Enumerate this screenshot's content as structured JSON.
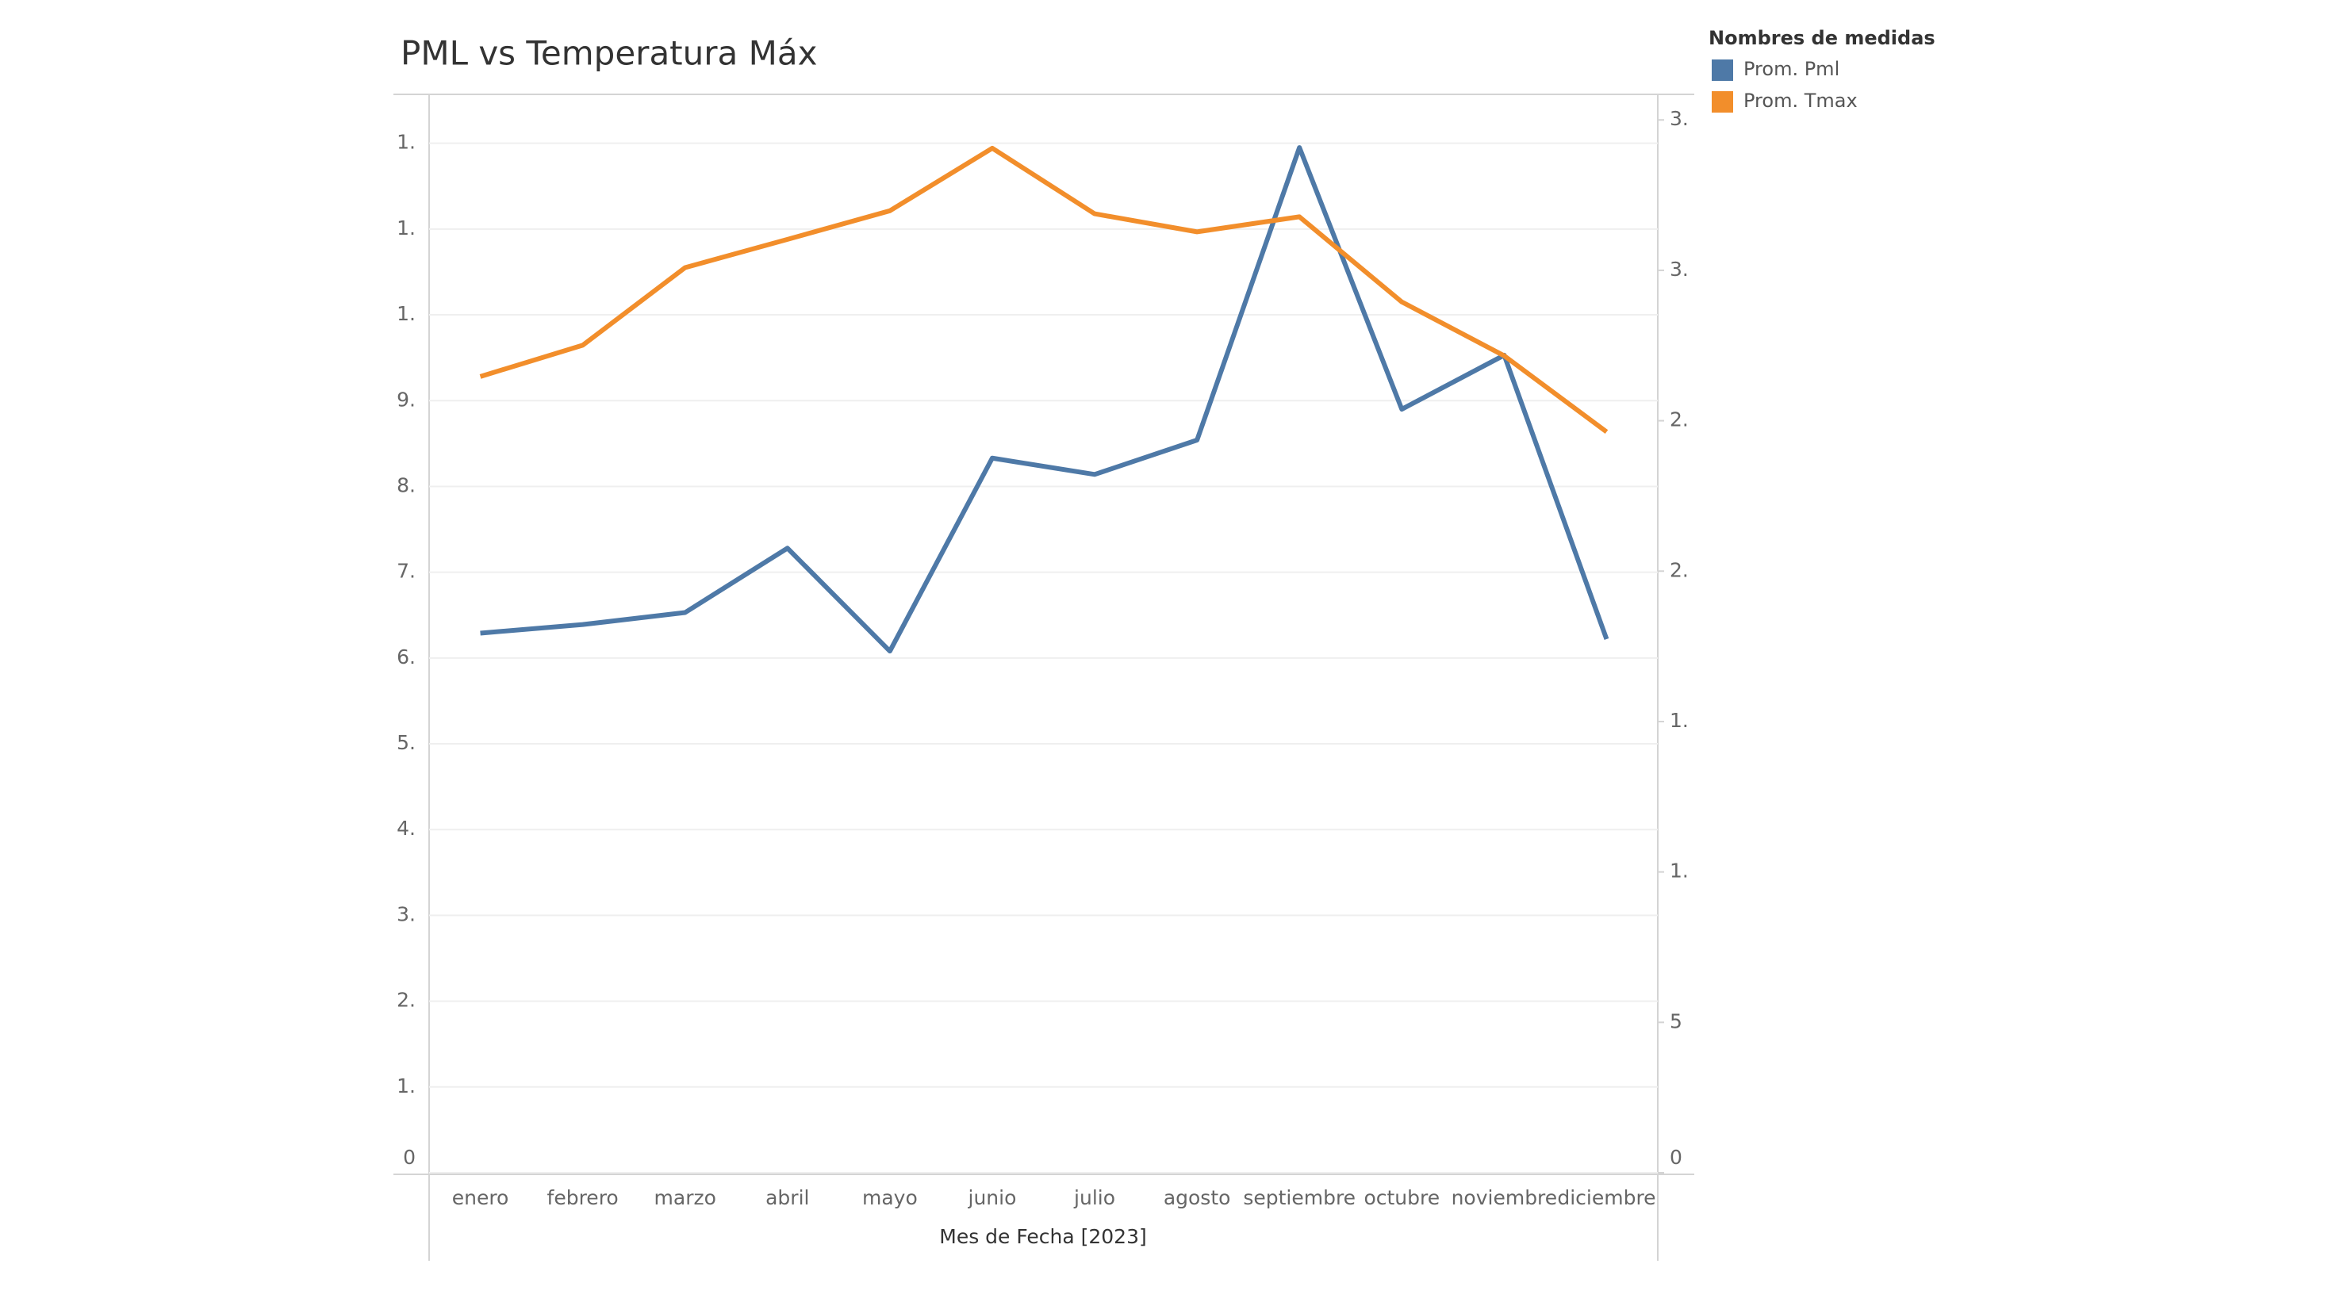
{
  "chart_data": {
    "type": "line",
    "title": "PML vs Temperatura Máx",
    "x_label": "Mes de Fecha [2023]",
    "legend_title": "Nombres de medidas",
    "legend_position": "right",
    "grid": true,
    "categories": [
      "enero",
      "febrero",
      "marzo",
      "abril",
      "mayo",
      "junio",
      "julio",
      "agosto",
      "septiembre",
      "octubre",
      "noviembre",
      "diciembre"
    ],
    "series": [
      {
        "name": "Prom. Pml",
        "color": "#4e79a7",
        "axis": "y",
        "values": [
          6.29,
          6.39,
          6.53,
          7.28,
          6.08,
          8.33,
          8.14,
          8.54,
          11.95,
          8.9,
          9.53,
          6.22
        ]
      },
      {
        "name": "Prom. Tmax",
        "color": "#f28e2b",
        "axis": "y2",
        "values": [
          26.47,
          27.51,
          30.09,
          31.03,
          31.98,
          34.06,
          31.88,
          31.28,
          31.78,
          28.95,
          27.16,
          24.63
        ]
      }
    ],
    "ylim": [
      0,
      12.57
    ],
    "yticks": [
      0,
      {
        "value": 1,
        "label": "1."
      },
      {
        "value": 2,
        "label": "2."
      },
      {
        "value": 3,
        "label": "3."
      },
      {
        "value": 4,
        "label": "4."
      },
      {
        "value": 5,
        "label": "5."
      },
      {
        "value": 6,
        "label": "6."
      },
      {
        "value": 7,
        "label": "7."
      },
      {
        "value": 8,
        "label": "8."
      },
      {
        "value": 9,
        "label": "9."
      },
      {
        "value": 10,
        "label": "1."
      },
      {
        "value": 11,
        "label": "1."
      },
      {
        "value": 12,
        "label": "1."
      }
    ],
    "y2lim": [
      0,
      35.85
    ],
    "y2ticks": [
      0,
      5,
      {
        "value": 10,
        "label": "1."
      },
      {
        "value": 15,
        "label": "1."
      },
      {
        "value": 20,
        "label": "2."
      },
      {
        "value": 25,
        "label": "2."
      },
      {
        "value": 30,
        "label": "3."
      },
      {
        "value": 35,
        "label": "3."
      }
    ]
  }
}
